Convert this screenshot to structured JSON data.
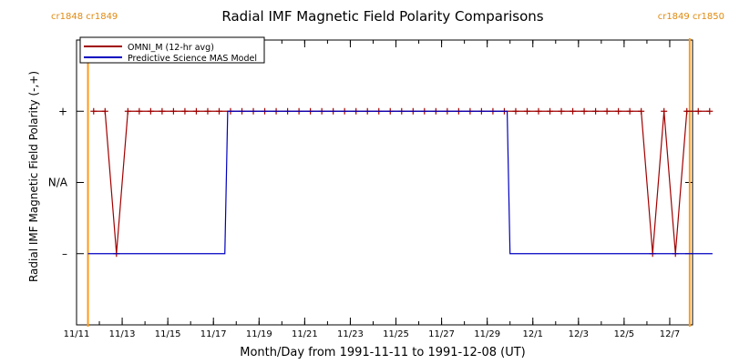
{
  "chart_data": {
    "type": "line",
    "title": "Radial IMF Magnetic Field Polarity Comparisons",
    "xlabel": "Month/Day from 1991-11-11 to 1991-12-08 (UT)",
    "ylabel": "Radial IMF Magnetic Field Polarity (-,+)",
    "x_start": "1991-11-11",
    "x_end": "1991-12-08",
    "xlim": [
      "1991-11-11",
      "1991-12-08"
    ],
    "ylim": [
      -2,
      2
    ],
    "y_tick_labels": [
      {
        "value": 1,
        "label": "+"
      },
      {
        "value": 0,
        "label": "N/A"
      },
      {
        "value": -1,
        "label": "–"
      }
    ],
    "x_ticks": [
      {
        "date": "1991-11-11",
        "label": "11/11"
      },
      {
        "date": "1991-11-13",
        "label": "11/13"
      },
      {
        "date": "1991-11-15",
        "label": "11/15"
      },
      {
        "date": "1991-11-17",
        "label": "11/17"
      },
      {
        "date": "1991-11-19",
        "label": "11/19"
      },
      {
        "date": "1991-11-21",
        "label": "11/21"
      },
      {
        "date": "1991-11-23",
        "label": "11/23"
      },
      {
        "date": "1991-11-25",
        "label": "11/25"
      },
      {
        "date": "1991-11-27",
        "label": "11/27"
      },
      {
        "date": "1991-11-29",
        "label": "11/29"
      },
      {
        "date": "1991-12-01",
        "label": "12/1"
      },
      {
        "date": "1991-12-03",
        "label": "12/3"
      },
      {
        "date": "1991-12-05",
        "label": "12/5"
      },
      {
        "date": "1991-12-07",
        "label": "12/7"
      }
    ],
    "carrington_markers": [
      {
        "date": "1991-11-11 12:00",
        "label": "cr1848 cr1849",
        "position": "top-left"
      },
      {
        "date": "1991-12-07 21:00",
        "label": "cr1849 cr1850",
        "position": "top-right"
      }
    ],
    "legend": {
      "position": "top-left",
      "entries": [
        "OMNI_M (12-hr avg)",
        "Predictive Science MAS Model"
      ]
    },
    "series": [
      {
        "name": "OMNI_M (12-hr avg)",
        "color": "#a00000",
        "marker": "plus",
        "points": [
          [
            "1991-11-11 18:00",
            1
          ],
          [
            "1991-11-12 06:00",
            1
          ],
          [
            "1991-11-12 18:00",
            -1
          ],
          [
            "1991-11-13 06:00",
            1
          ],
          [
            "1991-11-13 18:00",
            1
          ],
          [
            "1991-11-14 06:00",
            1
          ],
          [
            "1991-11-14 18:00",
            1
          ],
          [
            "1991-11-15 06:00",
            1
          ],
          [
            "1991-11-15 18:00",
            1
          ],
          [
            "1991-11-16 06:00",
            1
          ],
          [
            "1991-11-16 18:00",
            1
          ],
          [
            "1991-11-17 06:00",
            1
          ],
          [
            "1991-11-17 18:00",
            1
          ],
          [
            "1991-11-18 06:00",
            1
          ],
          [
            "1991-11-18 18:00",
            1
          ],
          [
            "1991-11-19 06:00",
            1
          ],
          [
            "1991-11-19 18:00",
            1
          ],
          [
            "1991-11-20 06:00",
            1
          ],
          [
            "1991-11-20 18:00",
            1
          ],
          [
            "1991-11-21 06:00",
            1
          ],
          [
            "1991-11-21 18:00",
            1
          ],
          [
            "1991-11-22 06:00",
            1
          ],
          [
            "1991-11-22 18:00",
            1
          ],
          [
            "1991-11-23 06:00",
            1
          ],
          [
            "1991-11-23 18:00",
            1
          ],
          [
            "1991-11-24 06:00",
            1
          ],
          [
            "1991-11-24 18:00",
            1
          ],
          [
            "1991-11-25 06:00",
            1
          ],
          [
            "1991-11-25 18:00",
            1
          ],
          [
            "1991-11-26 06:00",
            1
          ],
          [
            "1991-11-26 18:00",
            1
          ],
          [
            "1991-11-27 06:00",
            1
          ],
          [
            "1991-11-27 18:00",
            1
          ],
          [
            "1991-11-28 06:00",
            1
          ],
          [
            "1991-11-28 18:00",
            1
          ],
          [
            "1991-11-29 06:00",
            1
          ],
          [
            "1991-11-29 18:00",
            1
          ],
          [
            "1991-11-30 06:00",
            1
          ],
          [
            "1991-11-30 18:00",
            1
          ],
          [
            "1991-12-01 06:00",
            1
          ],
          [
            "1991-12-01 18:00",
            1
          ],
          [
            "1991-12-02 06:00",
            1
          ],
          [
            "1991-12-02 18:00",
            1
          ],
          [
            "1991-12-03 06:00",
            1
          ],
          [
            "1991-12-03 18:00",
            1
          ],
          [
            "1991-12-04 06:00",
            1
          ],
          [
            "1991-12-04 18:00",
            1
          ],
          [
            "1991-12-05 06:00",
            1
          ],
          [
            "1991-12-05 18:00",
            1
          ],
          [
            "1991-12-06 06:00",
            -1
          ],
          [
            "1991-12-06 18:00",
            1
          ],
          [
            "1991-12-07 06:00",
            -1
          ],
          [
            "1991-12-07 18:00",
            1
          ],
          [
            "1991-12-08 06:00",
            1
          ],
          [
            "1991-12-08 18:00",
            1
          ]
        ]
      },
      {
        "name": "Predictive Science MAS Model",
        "color": "#0000c0",
        "marker": "none",
        "points": [
          [
            "1991-11-11 12:00",
            -1
          ],
          [
            "1991-11-17 12:00",
            -1
          ],
          [
            "1991-11-17 15:00",
            1
          ],
          [
            "1991-11-29 21:00",
            1
          ],
          [
            "1991-11-30 00:00",
            -1
          ],
          [
            "1991-12-08 21:00",
            -1
          ]
        ]
      }
    ]
  }
}
